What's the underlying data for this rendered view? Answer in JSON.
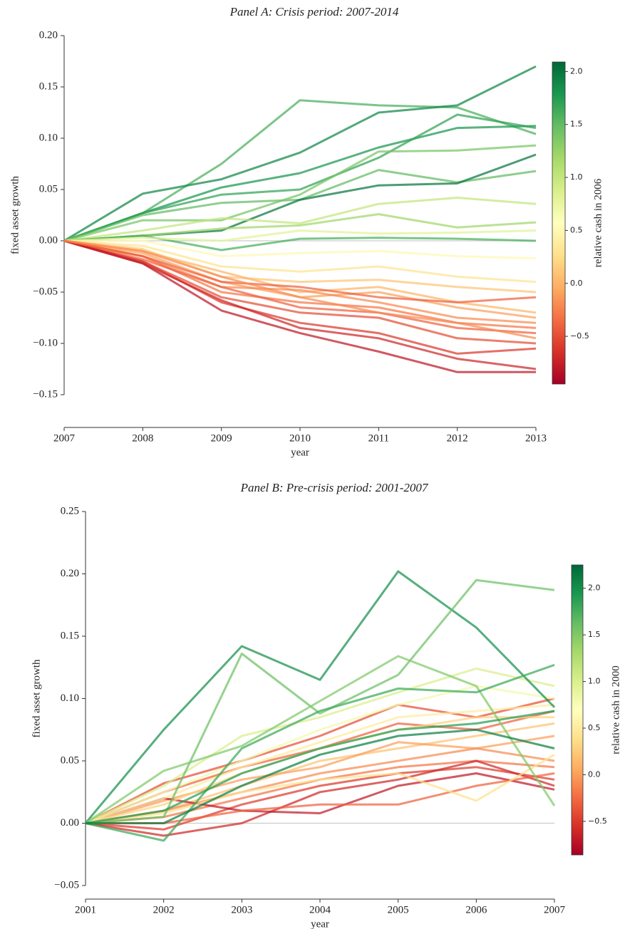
{
  "chart_data": [
    {
      "type": "line",
      "title": "Panel A: Crisis period: 2007-2014",
      "xlabel": "year",
      "ylabel": "fixed asset growth",
      "x": [
        2007,
        2008,
        2009,
        2010,
        2011,
        2012,
        2013
      ],
      "xlim": [
        2007,
        2013
      ],
      "xticks": [
        2007,
        2008,
        2009,
        2010,
        2011,
        2012,
        2013
      ],
      "ylim": [
        -0.15,
        0.2
      ],
      "yticks": [
        {
          "value": -0.15,
          "label": "−0.15"
        },
        {
          "value": -0.1,
          "label": "−0.10"
        },
        {
          "value": -0.05,
          "label": "−0.05"
        },
        {
          "value": 0,
          "label": "0.00"
        },
        {
          "value": 0.05,
          "label": "0.05"
        },
        {
          "value": 0.1,
          "label": "0.10"
        },
        {
          "value": 0.15,
          "label": "0.15"
        },
        {
          "value": 0.2,
          "label": "0.20"
        }
      ],
      "hline": 0,
      "colorbar": {
        "label": "relative cash in 2006",
        "clim": [
          -0.95,
          2.09
        ],
        "ticks": [
          {
            "value": -0.5,
            "label": "−0.5"
          },
          {
            "value": 0,
            "label": "0.0"
          },
          {
            "value": 0.5,
            "label": "0.5"
          },
          {
            "value": 1,
            "label": "1.0"
          },
          {
            "value": 1.5,
            "label": "1.5"
          },
          {
            "value": 2,
            "label": "2.0"
          }
        ],
        "colormap": [
          "#a50026",
          "#d73027",
          "#f46d43",
          "#fdae61",
          "#fee08b",
          "#ffffbf",
          "#d9ef8b",
          "#a6d96a",
          "#66bd63",
          "#1a9850",
          "#006837"
        ]
      },
      "series": [
        {
          "cash": 1.6,
          "values": [
            0,
            0.027,
            0.075,
            0.137,
            0.132,
            0.13,
            0.104
          ]
        },
        {
          "cash": 1.9,
          "values": [
            0,
            0.046,
            0.06,
            0.086,
            0.125,
            0.132,
            0.17
          ]
        },
        {
          "cash": 1.8,
          "values": [
            0,
            0.027,
            0.052,
            0.066,
            0.091,
            0.11,
            0.112
          ]
        },
        {
          "cash": 1.7,
          "values": [
            0,
            0.027,
            0.045,
            0.05,
            0.081,
            0.123,
            0.11
          ]
        },
        {
          "cash": 1.5,
          "values": [
            0,
            0.025,
            0.037,
            0.04,
            0.069,
            0.057,
            0.068
          ]
        },
        {
          "cash": 2.0,
          "values": [
            0,
            0.005,
            0.01,
            0.04,
            0.054,
            0.056,
            0.084
          ]
        },
        {
          "cash": 1.4,
          "values": [
            0,
            0.02,
            0.02,
            0.045,
            0.087,
            0.088,
            0.093
          ]
        },
        {
          "cash": 1.0,
          "values": [
            0,
            0.01,
            0.022,
            0.017,
            0.036,
            0.042,
            0.036
          ]
        },
        {
          "cash": 1.2,
          "values": [
            0,
            0.005,
            0.012,
            0.015,
            0.026,
            0.013,
            0.018
          ]
        },
        {
          "cash": 1.6,
          "values": [
            0,
            0.005,
            -0.009,
            0.002,
            0.003,
            0.002,
            0
          ]
        },
        {
          "cash": 0.8,
          "values": [
            0,
            0.003,
            0,
            0.01,
            0.007,
            0.008,
            0.01
          ]
        },
        {
          "cash": 0.5,
          "values": [
            0,
            0,
            -0.015,
            -0.012,
            -0.01,
            -0.015,
            -0.017
          ]
        },
        {
          "cash": 0.3,
          "values": [
            0,
            -0.005,
            -0.025,
            -0.03,
            -0.025,
            -0.035,
            -0.04
          ]
        },
        {
          "cash": 0.1,
          "values": [
            0,
            -0.008,
            -0.035,
            -0.04,
            -0.038,
            -0.045,
            -0.05
          ]
        },
        {
          "cash": 0.0,
          "values": [
            0,
            -0.01,
            -0.03,
            -0.05,
            -0.045,
            -0.06,
            -0.07
          ]
        },
        {
          "cash": -0.1,
          "values": [
            0,
            -0.012,
            -0.04,
            -0.055,
            -0.05,
            -0.065,
            -0.075
          ]
        },
        {
          "cash": -0.2,
          "values": [
            0,
            -0.015,
            -0.045,
            -0.048,
            -0.06,
            -0.075,
            -0.08
          ]
        },
        {
          "cash": -0.3,
          "values": [
            0,
            -0.015,
            -0.05,
            -0.06,
            -0.065,
            -0.08,
            -0.085
          ]
        },
        {
          "cash": -0.4,
          "values": [
            0,
            -0.018,
            -0.045,
            -0.065,
            -0.07,
            -0.085,
            -0.09
          ]
        },
        {
          "cash": -0.5,
          "values": [
            0,
            -0.02,
            -0.055,
            -0.07,
            -0.075,
            -0.095,
            -0.1
          ]
        },
        {
          "cash": -0.6,
          "values": [
            0,
            -0.02,
            -0.06,
            -0.08,
            -0.09,
            -0.11,
            -0.105
          ]
        },
        {
          "cash": -0.7,
          "values": [
            0,
            -0.022,
            -0.058,
            -0.085,
            -0.095,
            -0.115,
            -0.125
          ]
        },
        {
          "cash": -0.8,
          "values": [
            0,
            -0.022,
            -0.068,
            -0.09,
            -0.108,
            -0.128,
            -0.128
          ]
        },
        {
          "cash": -0.4,
          "values": [
            0,
            -0.015,
            -0.04,
            -0.045,
            -0.055,
            -0.06,
            -0.055
          ]
        },
        {
          "cash": -0.2,
          "values": [
            0,
            -0.01,
            -0.035,
            -0.055,
            -0.07,
            -0.08,
            -0.095
          ]
        }
      ]
    },
    {
      "type": "line",
      "title": "Panel B: Pre-crisis period: 2001-2007",
      "xlabel": "year",
      "ylabel": "fixed asset growth",
      "x": [
        2001,
        2002,
        2003,
        2004,
        2005,
        2006,
        2007
      ],
      "xlim": [
        2001,
        2007
      ],
      "xticks": [
        2001,
        2002,
        2003,
        2004,
        2005,
        2006,
        2007
      ],
      "ylim": [
        -0.05,
        0.25
      ],
      "yticks": [
        {
          "value": -0.05,
          "label": "−0.05"
        },
        {
          "value": 0,
          "label": "0.00"
        },
        {
          "value": 0.05,
          "label": "0.05"
        },
        {
          "value": 0.1,
          "label": "0.10"
        },
        {
          "value": 0.15,
          "label": "0.15"
        },
        {
          "value": 0.2,
          "label": "0.20"
        },
        {
          "value": 0.25,
          "label": "0.25"
        }
      ],
      "hline": 0,
      "colorbar": {
        "label": "relative cash in 2000",
        "clim": [
          -0.86,
          2.25
        ],
        "ticks": [
          {
            "value": -0.5,
            "label": "−0.5"
          },
          {
            "value": 0,
            "label": "0.0"
          },
          {
            "value": 0.5,
            "label": "0.5"
          },
          {
            "value": 1,
            "label": "1.0"
          },
          {
            "value": 1.5,
            "label": "1.5"
          },
          {
            "value": 2,
            "label": "2.0"
          }
        ],
        "colormap": [
          "#a50026",
          "#d73027",
          "#f46d43",
          "#fdae61",
          "#fee08b",
          "#ffffbf",
          "#d9ef8b",
          "#a6d96a",
          "#66bd63",
          "#1a9850",
          "#006837"
        ]
      },
      "series": [
        {
          "cash": 0.2,
          "values": [
            0,
            0.01,
            0.03,
            0.05,
            0.06,
            0.07,
            0.08
          ]
        },
        {
          "cash": 0.0,
          "values": [
            0,
            0.018,
            0.035,
            0.045,
            0.065,
            0.06,
            0.07
          ]
        },
        {
          "cash": -0.1,
          "values": [
            0,
            0.01,
            0.025,
            0.04,
            0.05,
            0.06,
            0.05
          ]
        },
        {
          "cash": -0.2,
          "values": [
            0,
            0.005,
            0.02,
            0.035,
            0.045,
            0.05,
            0.045
          ]
        },
        {
          "cash": -0.3,
          "values": [
            0,
            0.025,
            0.045,
            0.06,
            0.08,
            0.075,
            0.09
          ]
        },
        {
          "cash": -0.4,
          "values": [
            0,
            0.032,
            0.05,
            0.07,
            0.095,
            0.085,
            0.1
          ]
        },
        {
          "cash": -0.5,
          "values": [
            0,
            -0.005,
            0.015,
            0.03,
            0.04,
            0.045,
            0.035
          ]
        },
        {
          "cash": -0.6,
          "values": [
            0,
            -0.01,
            0,
            0.025,
            0.035,
            0.05,
            0.03
          ]
        },
        {
          "cash": -0.7,
          "values": [
            0,
            0.02,
            0.01,
            0.008,
            0.03,
            0.04,
            0.027
          ]
        },
        {
          "cash": -0.3,
          "values": [
            0,
            0,
            0.01,
            0.015,
            0.015,
            0.03,
            0.04
          ]
        },
        {
          "cash": 0.4,
          "values": [
            0,
            0.008,
            0.025,
            0.035,
            0.04,
            0.018,
            0.055
          ]
        },
        {
          "cash": 0.3,
          "values": [
            0,
            0.015,
            0.04,
            0.06,
            0.075,
            0.085,
            0.085
          ]
        },
        {
          "cash": 0.5,
          "values": [
            0,
            0.02,
            0.045,
            0.065,
            0.085,
            0.09,
            0.095
          ]
        },
        {
          "cash": 0.8,
          "values": [
            0,
            0.025,
            0.05,
            0.075,
            0.095,
            0.11,
            0.1
          ]
        },
        {
          "cash": 1.0,
          "values": [
            0,
            0.03,
            0.07,
            0.085,
            0.105,
            0.124,
            0.11
          ]
        },
        {
          "cash": 2.0,
          "values": [
            0,
            0.075,
            0.142,
            0.115,
            0.202,
            0.157,
            0.093
          ]
        },
        {
          "cash": 1.6,
          "values": [
            0,
            0.005,
            0.136,
            0.088,
            0.119,
            0.195,
            0.187
          ]
        },
        {
          "cash": 1.5,
          "values": [
            0,
            0.042,
            0.062,
            0.098,
            0.134,
            0.11,
            0.014
          ]
        },
        {
          "cash": 1.8,
          "values": [
            0,
            -0.014,
            0.06,
            0.09,
            0.108,
            0.105,
            0.127
          ]
        },
        {
          "cash": 1.9,
          "values": [
            0,
            0.01,
            0.04,
            0.06,
            0.075,
            0.08,
            0.09
          ]
        },
        {
          "cash": 2.1,
          "values": [
            0,
            0,
            0.03,
            0.055,
            0.07,
            0.075,
            0.06
          ]
        }
      ]
    }
  ]
}
